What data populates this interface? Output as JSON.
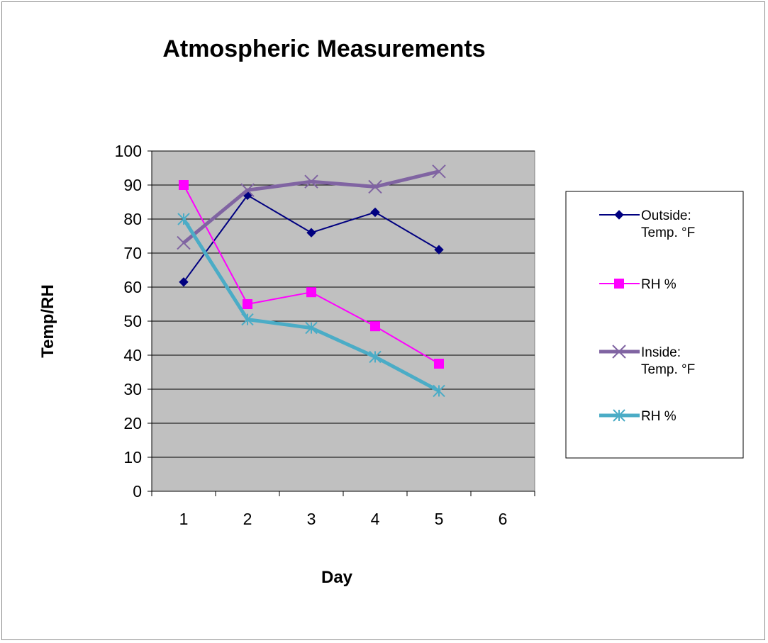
{
  "chart_data": {
    "type": "line",
    "title": "Atmospheric Measurements",
    "xlabel": "Day",
    "ylabel": "Temp/RH",
    "x_categories": [
      "1",
      "2",
      "3",
      "4",
      "5",
      "6"
    ],
    "ylim": [
      0,
      100
    ],
    "y_ticks": [
      0,
      10,
      20,
      30,
      40,
      50,
      60,
      70,
      80,
      90,
      100
    ],
    "grid": true,
    "plot_background": "#c0c0c0",
    "legend_position": "right",
    "series": [
      {
        "name_lines": [
          "Outside:",
          "Temp. °F"
        ],
        "color": "#000080",
        "marker": "diamond",
        "line_style": "thin",
        "values": [
          61.5,
          87,
          76,
          82,
          71
        ]
      },
      {
        "name_lines": [
          "RH %"
        ],
        "color": "#ff00ff",
        "marker": "square",
        "line_style": "thin",
        "values": [
          90,
          55,
          58.5,
          48.5,
          37.5
        ]
      },
      {
        "name_lines": [
          "Inside:",
          "Temp. °F"
        ],
        "color": "#8064a2",
        "marker": "x",
        "line_style": "thick",
        "values": [
          73,
          88.5,
          91,
          89.5,
          94
        ]
      },
      {
        "name_lines": [
          "RH %"
        ],
        "color": "#4bacc6",
        "marker": "star",
        "line_style": "thick",
        "values": [
          80,
          50.5,
          48,
          39.5,
          29.5
        ]
      }
    ]
  }
}
